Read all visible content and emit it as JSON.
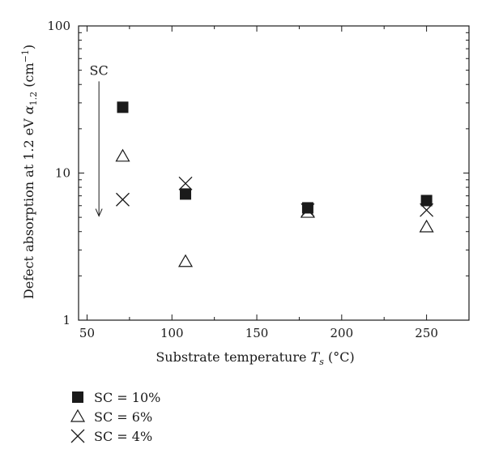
{
  "chart_data": {
    "type": "scatter",
    "xlabel_prefix": "Substrate temperature ",
    "xlabel_var": "T",
    "xlabel_sub": "s",
    "xlabel_unit": " (°C)",
    "ylabel_prefix": "Defect absorption at 1.2 eV ",
    "ylabel_var": "α",
    "ylabel_sub": "1.2",
    "ylabel_unit_pre": " (cm",
    "ylabel_sup": "−1",
    "ylabel_unit_post": ")",
    "xlim": [
      45,
      275
    ],
    "ylim": [
      1,
      100
    ],
    "yscale": "log",
    "x_ticks": [
      50,
      100,
      150,
      200,
      250
    ],
    "y_ticks": [
      1,
      10,
      100
    ],
    "annotation": {
      "text": "SC",
      "arrow_from": 28,
      "arrow_to": 5.1,
      "x": 57
    },
    "series": [
      {
        "name": "SC = 10%",
        "marker": "filled-square",
        "x": [
          71,
          108,
          180,
          250
        ],
        "y": [
          28,
          7.2,
          5.8,
          6.5
        ]
      },
      {
        "name": "SC = 6%",
        "marker": "open-triangle",
        "x": [
          71,
          108,
          180,
          250
        ],
        "y": [
          13,
          2.5,
          5.4,
          4.3
        ]
      },
      {
        "name": "SC = 4%",
        "marker": "cross",
        "x": [
          71,
          108,
          180,
          250
        ],
        "y": [
          6.6,
          8.5,
          5.6,
          5.6
        ]
      }
    ]
  }
}
